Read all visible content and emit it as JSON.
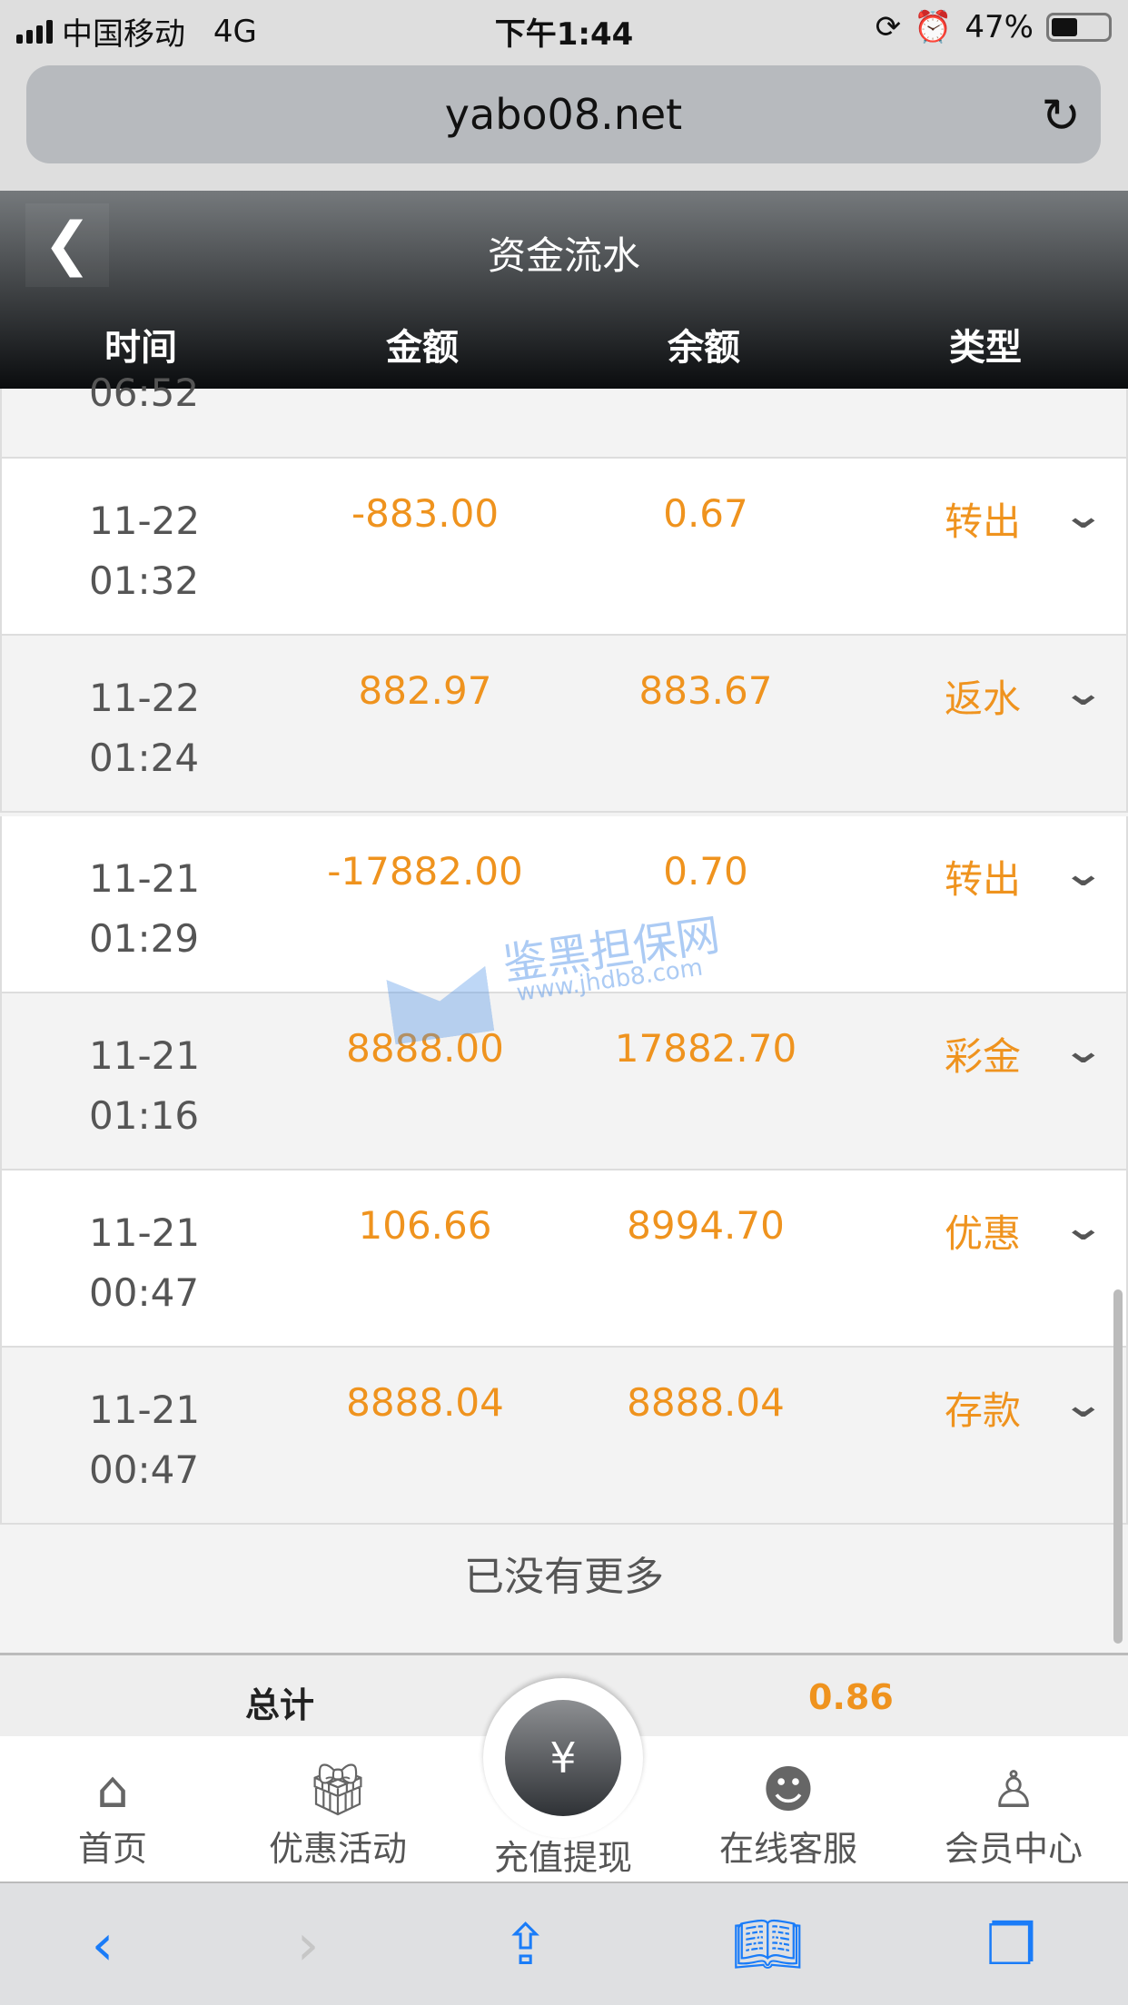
{
  "status_bar": {
    "carrier": "中国移动",
    "network": "4G",
    "time": "下午1:44",
    "battery": "47%",
    "battery_level": 0.47
  },
  "browser": {
    "url": "yabo08.net"
  },
  "header": {
    "title": "资金流水",
    "columns": [
      "时间",
      "金额",
      "余额",
      "类型"
    ]
  },
  "partial_row": {
    "time": "06:52"
  },
  "records": [
    {
      "date": "11-22",
      "time": "01:32",
      "amount": "-883.00",
      "balance": "0.67",
      "type": "转出"
    },
    {
      "date": "11-22",
      "time": "01:24",
      "amount": "882.97",
      "balance": "883.67",
      "type": "返水"
    },
    {
      "date": "11-21",
      "time": "01:29",
      "amount": "-17882.00",
      "balance": "0.70",
      "type": "转出"
    },
    {
      "date": "11-21",
      "time": "01:16",
      "amount": "8888.00",
      "balance": "17882.70",
      "type": "彩金"
    },
    {
      "date": "11-21",
      "time": "00:47",
      "amount": "106.66",
      "balance": "8994.70",
      "type": "优惠"
    },
    {
      "date": "11-21",
      "time": "00:47",
      "amount": "8888.04",
      "balance": "8888.04",
      "type": "存款"
    }
  ],
  "no_more": "已没有更多",
  "summary": {
    "label": "总计",
    "value": "0.86"
  },
  "tabs": [
    {
      "label": "首页",
      "icon": "home-icon"
    },
    {
      "label": "优惠活动",
      "icon": "gift-icon"
    },
    {
      "label": "充值提现",
      "icon": "money-bag-icon"
    },
    {
      "label": "在线客服",
      "icon": "headset-icon"
    },
    {
      "label": "会员中心",
      "icon": "user-icon"
    }
  ],
  "watermark": {
    "name": "鉴黑担保网",
    "url": "www.jhdb8.com"
  },
  "colors": {
    "accent": "#ef931e",
    "header_dark": "#0a0c0e",
    "safari_blue": "#1a7cf8"
  }
}
